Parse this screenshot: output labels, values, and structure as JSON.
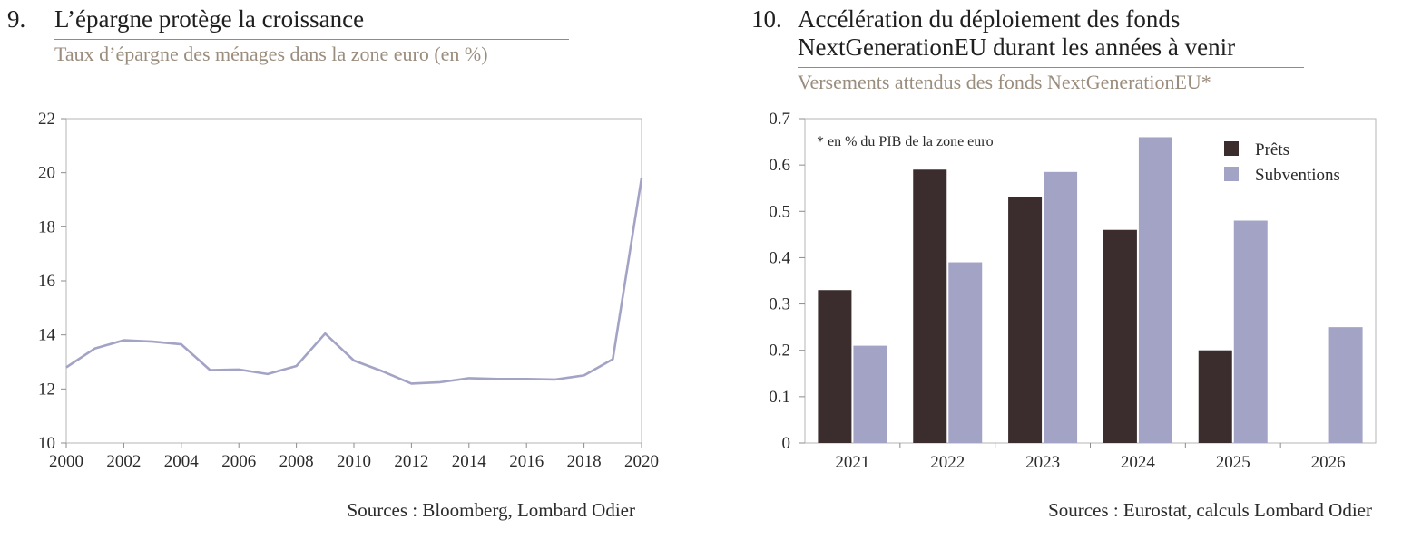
{
  "left": {
    "number": "9.",
    "title": "L’épargne protège la croissance",
    "subtitle": "Taux d’épargne des ménages dans la zone euro (en %)",
    "source": "Sources : Bloomberg, Lombard Odier"
  },
  "right": {
    "number": "10.",
    "title_line1": "Accélération du déploiement des fonds",
    "title_line2": "NextGenerationEU durant les années à venir",
    "subtitle": "Versements attendus des fonds NextGenerationEU*",
    "source": "Sources : Eurostat, calculs Lombard Odier"
  },
  "chart_data": [
    {
      "type": "line",
      "title": "L’épargne protège la croissance",
      "subtitle": "Taux d’épargne des ménages dans la zone euro (en %)",
      "x": [
        2000,
        2001,
        2002,
        2003,
        2004,
        2005,
        2006,
        2007,
        2008,
        2009,
        2010,
        2011,
        2012,
        2013,
        2014,
        2015,
        2016,
        2017,
        2018,
        2019,
        2020
      ],
      "series": [
        {
          "values": [
            12.8,
            13.5,
            13.8,
            13.75,
            13.65,
            12.7,
            12.72,
            12.55,
            12.85,
            14.05,
            13.05,
            12.65,
            12.2,
            12.25,
            12.4,
            12.37,
            12.37,
            12.35,
            12.5,
            13.1,
            19.8
          ]
        }
      ],
      "xlim": [
        2000,
        2020
      ],
      "xticks": [
        "2000",
        "2002",
        "2004",
        "2006",
        "2008",
        "2010",
        "2012",
        "2014",
        "2016",
        "2018",
        "2020"
      ],
      "ylim": [
        10,
        22
      ],
      "yticks": [
        "10",
        "12",
        "14",
        "16",
        "18",
        "20",
        "22"
      ],
      "line_color": "#a3a3c6",
      "grid": false
    },
    {
      "type": "bar",
      "title": "Accélération du déploiement des fonds NextGenerationEU durant les années à venir",
      "subtitle": "Versements attendus des fonds NextGenerationEU*",
      "annotation": "* en % du PIB de la zone euro",
      "categories": [
        "2021",
        "2022",
        "2023",
        "2024",
        "2025",
        "2026"
      ],
      "series": [
        {
          "name": "Prêts",
          "color": "#3b2d2d",
          "values": [
            0.33,
            0.59,
            0.53,
            0.46,
            0.2,
            null
          ]
        },
        {
          "name": "Subventions",
          "color": "#a3a3c6",
          "values": [
            0.21,
            0.39,
            0.585,
            0.66,
            0.48,
            0.25
          ]
        }
      ],
      "ylim": [
        0,
        0.7
      ],
      "yticks": [
        "0",
        "0.1",
        "0.2",
        "0.3",
        "0.4",
        "0.5",
        "0.6",
        "0.7"
      ],
      "legend_position": "top-right",
      "grid": false
    }
  ]
}
